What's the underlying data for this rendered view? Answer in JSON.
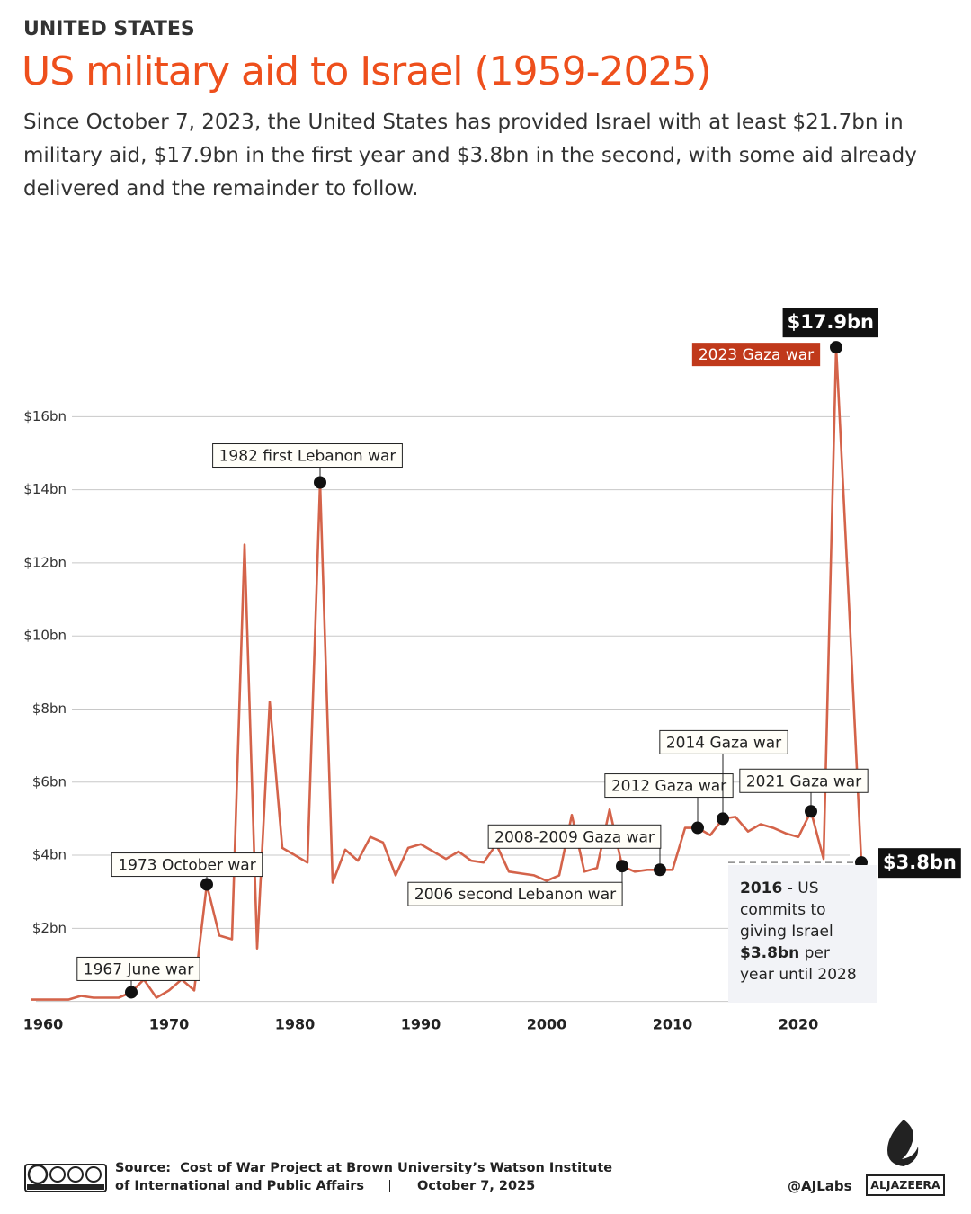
{
  "chart_data": {
    "type": "line",
    "kicker": "UNITED STATES",
    "title": "US military aid to Israel (1959-2025)",
    "subtitle": "Since October 7, 2023, the United States has provided Israel with at least $21.7bn in military aid, $17.9bn in the first year and $3.8bn in the second, with some aid already delivered and the remainder to follow.",
    "x": [
      1959,
      1960,
      1961,
      1962,
      1963,
      1964,
      1965,
      1966,
      1967,
      1968,
      1969,
      1970,
      1971,
      1972,
      1973,
      1974,
      1975,
      1976,
      1977,
      1978,
      1979,
      1980,
      1981,
      1982,
      1983,
      1984,
      1985,
      1986,
      1987,
      1988,
      1989,
      1990,
      1991,
      1992,
      1993,
      1994,
      1995,
      1996,
      1997,
      1998,
      1999,
      2000,
      2001,
      2002,
      2003,
      2004,
      2005,
      2006,
      2007,
      2008,
      2009,
      2010,
      2011,
      2012,
      2013,
      2014,
      2015,
      2016,
      2017,
      2018,
      2019,
      2020,
      2021,
      2022,
      2023,
      2024,
      2025
    ],
    "series": [
      {
        "name": "US military aid to Israel",
        "color": "#d4634a",
        "values": [
          0.05,
          0.05,
          0.05,
          0.05,
          0.15,
          0.1,
          0.1,
          0.1,
          0.25,
          0.6,
          0.1,
          0.3,
          0.6,
          0.3,
          3.2,
          1.8,
          1.7,
          12.5,
          1.45,
          8.2,
          4.2,
          4.0,
          3.8,
          14.2,
          3.25,
          4.15,
          3.85,
          4.5,
          4.35,
          3.45,
          4.2,
          4.3,
          4.1,
          3.9,
          4.1,
          3.85,
          3.8,
          4.3,
          3.55,
          3.5,
          3.45,
          3.3,
          3.45,
          5.1,
          3.55,
          3.65,
          5.25,
          3.7,
          3.55,
          3.6,
          3.6,
          3.6,
          4.75,
          4.75,
          4.55,
          5.0,
          5.05,
          4.65,
          4.85,
          4.75,
          4.6,
          4.5,
          5.2,
          3.9,
          17.9,
          11,
          3.8
        ],
        "value_labels": [
          null,
          null,
          null,
          null,
          null,
          null,
          null,
          null,
          null,
          null,
          null,
          null,
          null,
          null,
          null,
          null,
          null,
          null,
          null,
          null,
          null,
          null,
          null,
          null,
          null,
          null,
          null,
          null,
          null,
          null,
          null,
          null,
          null,
          null,
          null,
          null,
          null,
          null,
          null,
          null,
          null,
          null,
          null,
          null,
          null,
          null,
          null,
          null,
          null,
          null,
          null,
          null,
          null,
          null,
          null,
          null,
          null,
          null,
          null,
          null,
          null,
          null,
          null,
          null,
          "$17.9bn",
          null,
          "$3.8bn"
        ]
      }
    ],
    "xlim": [
      1959,
      2025
    ],
    "xticks": [
      1960,
      1970,
      1980,
      1990,
      2000,
      2010,
      2020
    ],
    "ylim": [
      0,
      18
    ],
    "yticks": [
      {
        "value": 2,
        "label": "$2bn"
      },
      {
        "value": 4,
        "label": "$4bn"
      },
      {
        "value": 6,
        "label": "$6bn"
      },
      {
        "value": 8,
        "label": "$8bn"
      },
      {
        "value": 10,
        "label": "$10bn"
      },
      {
        "value": 12,
        "label": "$12bn"
      },
      {
        "value": 14,
        "label": "$14bn"
      },
      {
        "value": 16,
        "label": "$16bn"
      }
    ],
    "grid": true,
    "annotations": [
      {
        "text": "1967 June war",
        "x": 1967
      },
      {
        "text": "1973 October war",
        "x": 1973
      },
      {
        "text": "1982 first Lebanon war",
        "x": 1982
      },
      {
        "text": "2006 second Lebanon war",
        "x": 2006
      },
      {
        "text": "2008-2009 Gaza war",
        "x": 2009
      },
      {
        "text": "2012 Gaza war",
        "x": 2012
      },
      {
        "text": "2014 Gaza war",
        "x": 2014
      },
      {
        "text": "2021 Gaza war",
        "x": 2021
      },
      {
        "text": "2023 Gaza war",
        "x": 2023
      }
    ],
    "note": {
      "year": "2016",
      "text": "- US commits to giving Israel",
      "amount": "$3.8bn",
      "rest": "per year until 2028"
    },
    "source_label": "Source:",
    "source": "Cost of War Project at Brown University’s Watson Institute of International and Public Affairs",
    "date": "October 7, 2025",
    "credit": "@AJLabs",
    "brand": "ALJAZEERA"
  }
}
